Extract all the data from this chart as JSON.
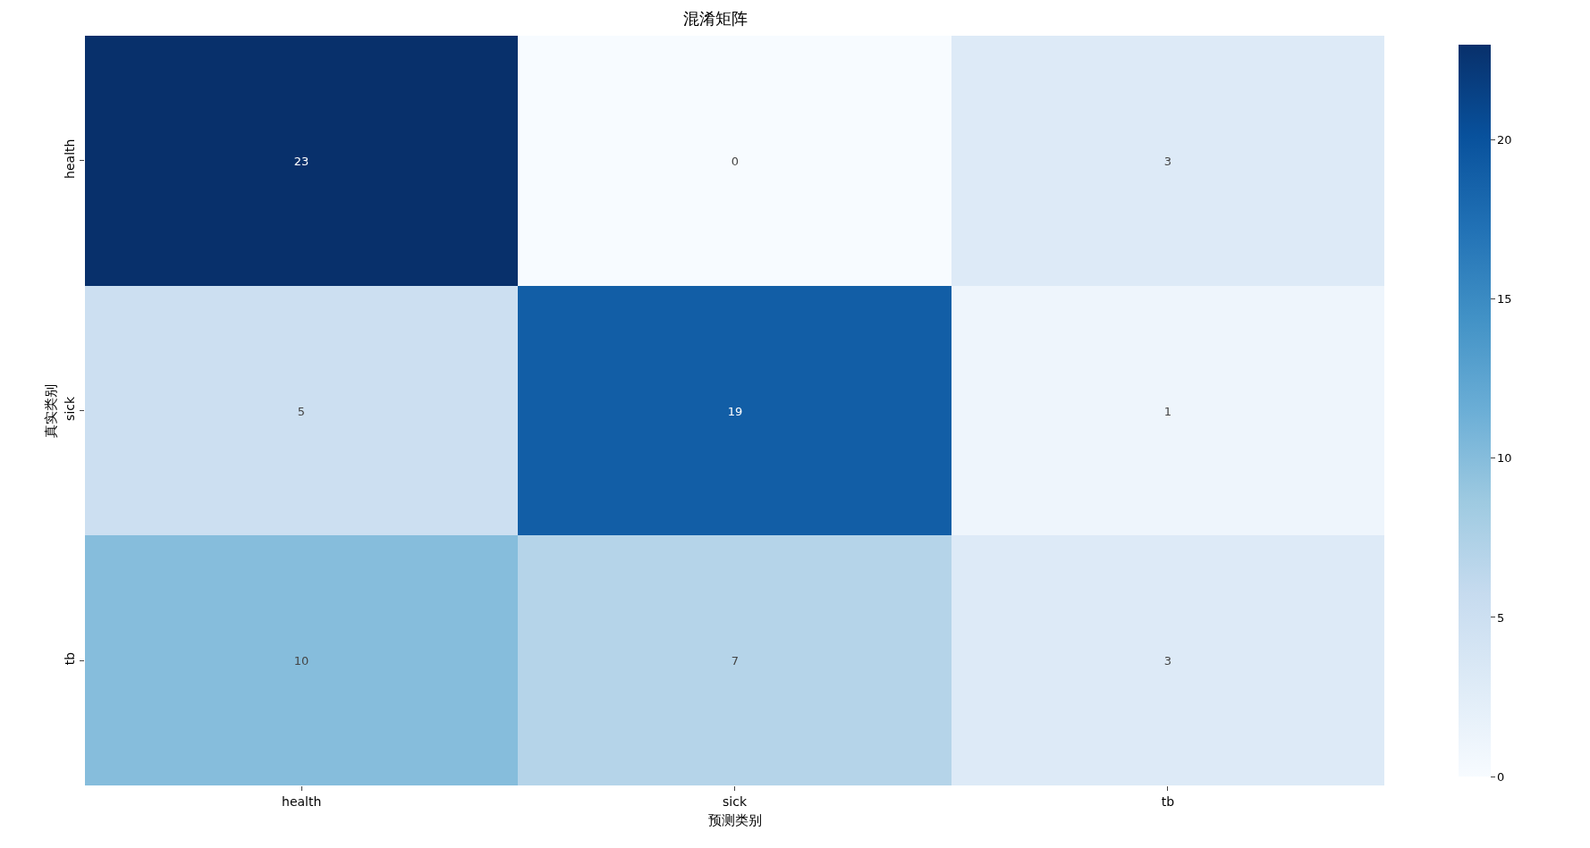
{
  "chart_data": {
    "type": "heatmap",
    "title": "混淆矩阵",
    "xlabel": "预测类别",
    "ylabel": "真实类别",
    "categories": [
      "health",
      "sick",
      "tb"
    ],
    "y_categories": [
      "health",
      "sick",
      "tb"
    ],
    "cells": [
      [
        23,
        0,
        3
      ],
      [
        5,
        19,
        1
      ],
      [
        10,
        7,
        3
      ]
    ],
    "clim": [
      0,
      23
    ],
    "cticks": [
      0,
      5,
      10,
      15,
      20
    ],
    "data_labels": true
  }
}
